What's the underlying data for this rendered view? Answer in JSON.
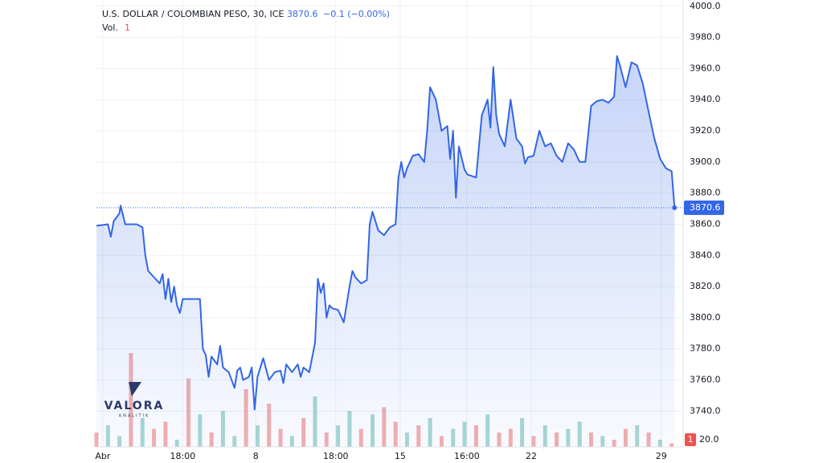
{
  "chart_data": {
    "type": "area",
    "title": "U.S. DOLLAR / COLOMBIAN PESO, 30, ICE",
    "change": "−0.1 (−0.00%)",
    "volume_title": "Vol.",
    "volume_value": 1,
    "watermark": {
      "name": "VALORA",
      "sub": "ANALITIK"
    },
    "color": "#3366e6",
    "grid": true,
    "xlim": [
      0,
      102
    ],
    "xticks": [
      {
        "value": 1.1,
        "label": "Abr"
      },
      {
        "value": 15.0,
        "label": "18:00"
      },
      {
        "value": 27.7,
        "label": "8"
      },
      {
        "value": 41.6,
        "label": "18:00"
      },
      {
        "value": 52.8,
        "label": "15"
      },
      {
        "value": 64.4,
        "label": "16:00"
      },
      {
        "value": 75.6,
        "label": "22"
      },
      {
        "value": 98.2,
        "label": "29"
      }
    ],
    "ylim": [
      3717,
      4004
    ],
    "yticks": [
      {
        "value": 3740,
        "label": "3740.0"
      },
      {
        "value": 3760,
        "label": "3760.0"
      },
      {
        "value": 3780,
        "label": "3780.0"
      },
      {
        "value": 3800,
        "label": "3800.0"
      },
      {
        "value": 3820,
        "label": "3820.0"
      },
      {
        "value": 3840,
        "label": "3840.0"
      },
      {
        "value": 3860,
        "label": "3860.0"
      },
      {
        "value": 3880,
        "label": "3880.0"
      },
      {
        "value": 3900,
        "label": "3900.0"
      },
      {
        "value": 3920,
        "label": "3920.0"
      },
      {
        "value": 3940,
        "label": "3940.0"
      },
      {
        "value": 3960,
        "label": "3960.0"
      },
      {
        "value": 3980,
        "label": "3980.0"
      },
      {
        "value": 4000,
        "label": "4000.0"
      }
    ],
    "x": [
      0,
      2,
      2.5,
      3,
      4,
      4.2,
      5,
      7,
      8,
      8.5,
      9,
      10,
      11,
      11.5,
      12,
      12.5,
      13,
      13.5,
      14,
      14.5,
      15,
      18,
      18.5,
      19,
      19.5,
      20,
      21,
      21.5,
      22,
      23,
      24,
      24.5,
      25,
      25.5,
      26.5,
      27,
      27.5,
      28,
      29,
      30,
      31,
      32,
      32.5,
      33,
      34,
      35,
      35.5,
      36,
      37,
      38,
      38.5,
      39,
      39.5,
      40,
      40.5,
      41,
      42,
      43,
      44,
      44.5,
      45,
      46,
      47,
      47.5,
      48,
      49,
      50,
      51,
      52,
      52.5,
      53,
      53.5,
      54,
      55,
      56,
      57,
      57.5,
      58,
      59,
      60,
      61,
      61.5,
      62,
      62.5,
      63,
      64,
      64.5,
      66,
      67,
      68,
      68.5,
      69,
      69.5,
      70,
      71,
      72,
      73,
      74,
      74.5,
      75,
      76,
      77,
      78,
      79,
      80,
      81,
      82,
      83,
      84,
      85,
      86,
      87,
      88,
      89,
      90,
      90.5,
      91,
      92,
      93,
      94,
      95,
      96,
      97,
      98,
      99,
      100,
      100.5
    ],
    "values": [
      3859,
      3860,
      3852,
      3862,
      3867,
      3872,
      3860,
      3860,
      3858,
      3840,
      3830,
      3826,
      3822,
      3828,
      3812,
      3825,
      3810,
      3820,
      3808,
      3803,
      3812,
      3812,
      3780,
      3776,
      3762,
      3775,
      3770,
      3782,
      3768,
      3765,
      3755,
      3766,
      3768,
      3760,
      3762,
      3768,
      3741,
      3762,
      3774,
      3760,
      3765,
      3766,
      3758,
      3770,
      3765,
      3770,
      3762,
      3768,
      3765,
      3784,
      3825,
      3816,
      3822,
      3800,
      3808,
      3806,
      3805,
      3797,
      3820,
      3830,
      3826,
      3822,
      3824,
      3860,
      3868,
      3856,
      3853,
      3858,
      3860,
      3890,
      3900,
      3890,
      3896,
      3904,
      3905,
      3900,
      3920,
      3948,
      3940,
      3920,
      3923,
      3902,
      3920,
      3877,
      3910,
      3895,
      3892,
      3890,
      3930,
      3940,
      3922,
      3961,
      3930,
      3918,
      3910,
      3940,
      3915,
      3910,
      3899,
      3903,
      3904,
      3920,
      3910,
      3912,
      3904,
      3900,
      3912,
      3908,
      3900,
      3900,
      3936,
      3939,
      3940,
      3938,
      3942,
      3968,
      3962,
      3948,
      3964,
      3962,
      3950,
      3932,
      3915,
      3902,
      3896,
      3894,
      3870.6
    ],
    "volume": {
      "ylim": [
        0,
        280
      ],
      "yticks": [
        {
          "value": 20,
          "label": "20.0"
        }
      ],
      "x": [
        0,
        2,
        4,
        6,
        8,
        10,
        12,
        14,
        16,
        18,
        20,
        22,
        24,
        26,
        28,
        30,
        32,
        34,
        36,
        38,
        40,
        42,
        44,
        46,
        48,
        50,
        52,
        54,
        56,
        58,
        60,
        62,
        64,
        66,
        68,
        70,
        72,
        74,
        76,
        78,
        80,
        82,
        84,
        86,
        88,
        90,
        92,
        94,
        96,
        98,
        100
      ],
      "values": [
        40,
        60,
        30,
        260,
        80,
        50,
        70,
        20,
        190,
        90,
        40,
        100,
        30,
        160,
        60,
        120,
        50,
        30,
        80,
        140,
        40,
        60,
        100,
        50,
        90,
        110,
        70,
        40,
        60,
        80,
        30,
        50,
        70,
        60,
        90,
        40,
        50,
        80,
        30,
        60,
        40,
        50,
        70,
        40,
        30,
        20,
        50,
        60,
        40,
        20,
        10
      ],
      "colors": [
        "#f4b0ae",
        "#a9d8d2",
        "#a9d8d2",
        "#f4b0ae",
        "#a9d8d2",
        "#f4b0ae",
        "#f4b0ae",
        "#a9d8d2",
        "#f4b0ae",
        "#a9d8d2",
        "#f4b0ae",
        "#a9d8d2",
        "#a9d8d2",
        "#f4b0ae",
        "#a9d8d2",
        "#f4b0ae",
        "#f4b0ae",
        "#a9d8d2",
        "#f4b0ae",
        "#a9d8d2",
        "#f4b0ae",
        "#a9d8d2",
        "#a9d8d2",
        "#f4b0ae",
        "#a9d8d2",
        "#f4b0ae",
        "#f4b0ae",
        "#a9d8d2",
        "#f4b0ae",
        "#a9d8d2",
        "#f4b0ae",
        "#a9d8d2",
        "#a9d8d2",
        "#f4b0ae",
        "#a9d8d2",
        "#f4b0ae",
        "#f4b0ae",
        "#a9d8d2",
        "#f4b0ae",
        "#a9d8d2",
        "#f4b0ae",
        "#a9d8d2",
        "#a9d8d2",
        "#f4b0ae",
        "#a9d8d2",
        "#f4b0ae",
        "#f4b0ae",
        "#a9d8d2",
        "#f4b0ae",
        "#a9d8d2",
        "#f4b0ae"
      ]
    }
  }
}
